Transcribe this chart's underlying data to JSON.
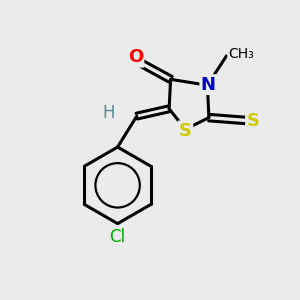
{
  "background_color": "#ebebeb",
  "figsize": [
    3.0,
    3.0
  ],
  "dpi": 100,
  "atom_colors": {
    "S": "#cccc00",
    "N": "#0000cc",
    "O": "#ff0000",
    "Cl": "#00aa00",
    "H": "#558888",
    "C": "#000000"
  }
}
